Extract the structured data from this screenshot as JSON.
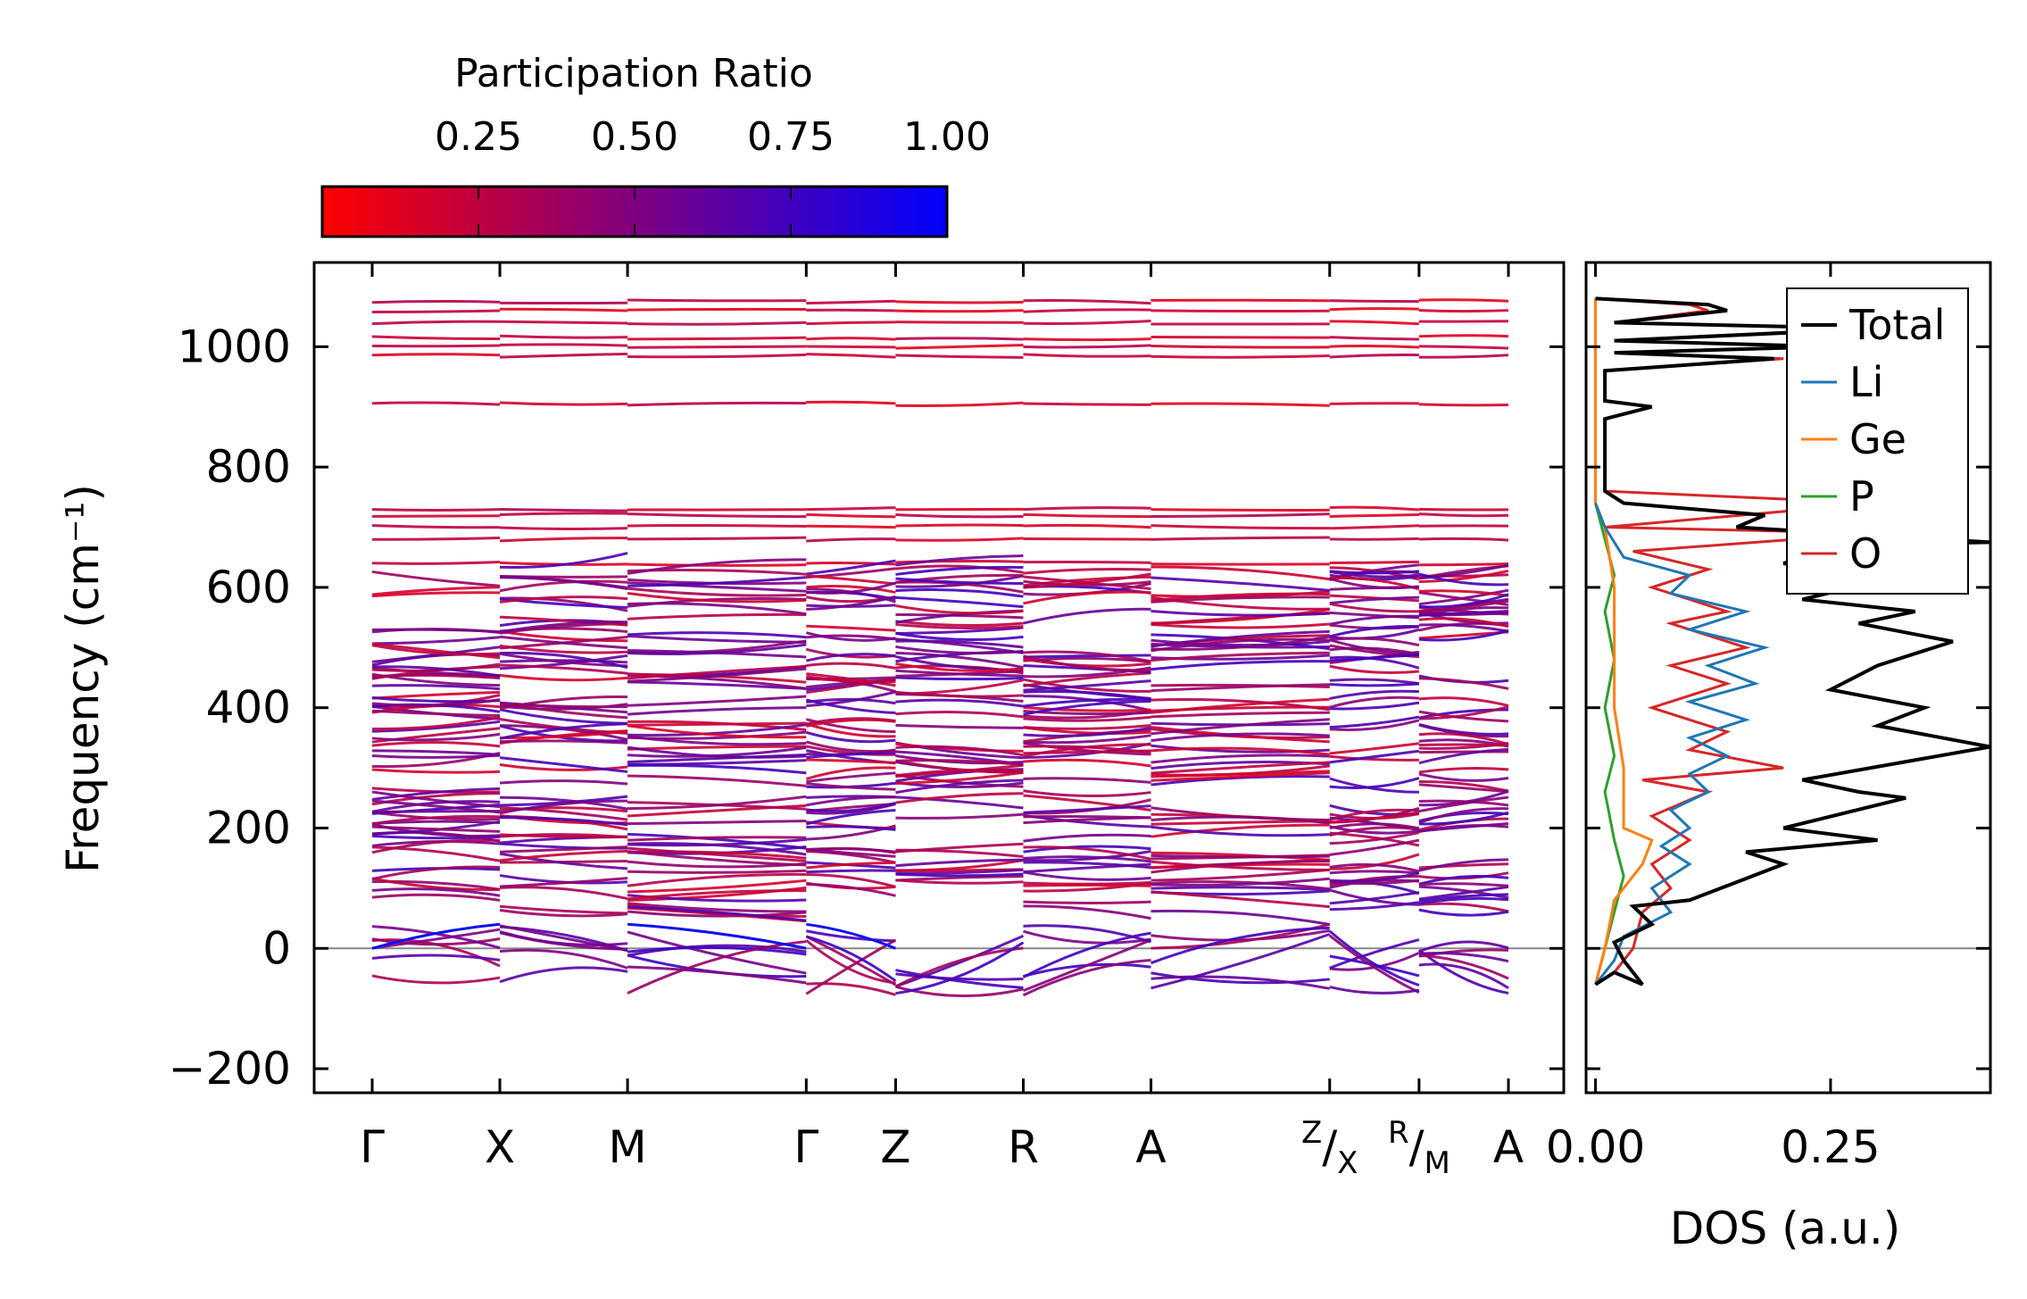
{
  "chart_data": [
    {
      "type": "line",
      "title": "",
      "xlabel": "",
      "ylabel": "Frequency (cm⁻¹)",
      "ylim": [
        -240,
        1140
      ],
      "yticks": [
        -200,
        0,
        200,
        400,
        600,
        800,
        1000
      ],
      "ytick_labels": [
        "−200",
        "0",
        "200",
        "400",
        "600",
        "800",
        "1000"
      ],
      "kpath": [
        {
          "label": "Γ",
          "pos": 0.0
        },
        {
          "label": "X",
          "pos": 1.0
        },
        {
          "label": "M",
          "pos": 2.0
        },
        {
          "label": "Γ",
          "pos": 3.4
        },
        {
          "label": "Z",
          "pos": 4.1
        },
        {
          "label": "R",
          "pos": 5.1
        },
        {
          "label": "A",
          "pos": 6.1
        },
        {
          "label": "Z/X",
          "pos": 7.5
        },
        {
          "label": "R/M",
          "pos": 8.2
        },
        {
          "label": "A",
          "pos": 8.9
        }
      ],
      "segment_breaks": [
        7.5,
        8.2
      ],
      "colorbar": {
        "label": "Participation Ratio",
        "range": [
          0.0,
          1.0
        ],
        "ticks": [
          0.25,
          0.5,
          0.75,
          1.0
        ],
        "tick_labels": [
          "0.25",
          "0.50",
          "0.75",
          "1.00"
        ],
        "color_low": "#ff0000",
        "color_high": "#0000ff"
      },
      "zero_line_color": "#888888",
      "flat_bands_cm1": [
        905,
        985,
        1000,
        1015,
        1040,
        1060,
        1075,
        730,
        720,
        700,
        680,
        640
      ],
      "dense_band_range_cm1": [
        60,
        640
      ],
      "negative_modes_min_cm1": -180
    },
    {
      "type": "line",
      "title": "",
      "xlabel": "DOS (a.u.)",
      "ylabel": "",
      "xlim": [
        -0.01,
        0.42
      ],
      "xticks": [
        0.0,
        0.25
      ],
      "xtick_labels": [
        "0.00",
        "0.25"
      ],
      "ylim": [
        -240,
        1140
      ],
      "legend_position": "top-right",
      "series": [
        {
          "name": "Total",
          "color": "#000000",
          "points": [
            [
              0.0,
              -60
            ],
            [
              0.02,
              -40
            ],
            [
              0.05,
              -60
            ],
            [
              0.03,
              -20
            ],
            [
              0.02,
              10
            ],
            [
              0.06,
              40
            ],
            [
              0.04,
              70
            ],
            [
              0.1,
              80
            ],
            [
              0.15,
              110
            ],
            [
              0.2,
              140
            ],
            [
              0.16,
              160
            ],
            [
              0.3,
              180
            ],
            [
              0.2,
              200
            ],
            [
              0.33,
              250
            ],
            [
              0.28,
              260
            ],
            [
              0.22,
              280
            ],
            [
              0.42,
              335
            ],
            [
              0.3,
              370
            ],
            [
              0.35,
              400
            ],
            [
              0.25,
              430
            ],
            [
              0.3,
              470
            ],
            [
              0.38,
              510
            ],
            [
              0.28,
              540
            ],
            [
              0.34,
              560
            ],
            [
              0.22,
              580
            ],
            [
              0.3,
              610
            ],
            [
              0.2,
              640
            ],
            [
              0.26,
              670
            ],
            [
              0.42,
              675
            ],
            [
              0.15,
              700
            ],
            [
              0.18,
              720
            ],
            [
              0.03,
              740
            ],
            [
              0.01,
              760
            ],
            [
              0.01,
              880
            ],
            [
              0.06,
              900
            ],
            [
              0.01,
              910
            ],
            [
              0.01,
              960
            ],
            [
              0.19,
              980
            ],
            [
              0.02,
              990
            ],
            [
              0.25,
              1000
            ],
            [
              0.02,
              1010
            ],
            [
              0.3,
              1030
            ],
            [
              0.02,
              1040
            ],
            [
              0.14,
              1060
            ],
            [
              0.12,
              1070
            ],
            [
              0.0,
              1080
            ]
          ]
        },
        {
          "name": "Li",
          "color": "#1f77b4",
          "points": [
            [
              0.0,
              -60
            ],
            [
              0.02,
              -20
            ],
            [
              0.03,
              20
            ],
            [
              0.08,
              60
            ],
            [
              0.06,
              100
            ],
            [
              0.1,
              140
            ],
            [
              0.07,
              170
            ],
            [
              0.1,
              200
            ],
            [
              0.08,
              230
            ],
            [
              0.12,
              260
            ],
            [
              0.1,
              290
            ],
            [
              0.14,
              320
            ],
            [
              0.1,
              350
            ],
            [
              0.16,
              380
            ],
            [
              0.1,
              410
            ],
            [
              0.17,
              440
            ],
            [
              0.12,
              470
            ],
            [
              0.18,
              500
            ],
            [
              0.1,
              530
            ],
            [
              0.16,
              560
            ],
            [
              0.08,
              590
            ],
            [
              0.1,
              620
            ],
            [
              0.03,
              650
            ],
            [
              0.01,
              700
            ],
            [
              0.0,
              740
            ]
          ]
        },
        {
          "name": "Ge",
          "color": "#ff7f0e",
          "points": [
            [
              0.0,
              -60
            ],
            [
              0.01,
              0
            ],
            [
              0.02,
              80
            ],
            [
              0.05,
              140
            ],
            [
              0.06,
              180
            ],
            [
              0.03,
              200
            ],
            [
              0.03,
              300
            ],
            [
              0.02,
              400
            ],
            [
              0.02,
              600
            ],
            [
              0.01,
              700
            ],
            [
              0.0,
              740
            ],
            [
              0.0,
              1080
            ]
          ]
        },
        {
          "name": "P",
          "color": "#2ca02c",
          "points": [
            [
              0.0,
              -60
            ],
            [
              0.01,
              0
            ],
            [
              0.02,
              60
            ],
            [
              0.03,
              120
            ],
            [
              0.02,
              180
            ],
            [
              0.01,
              260
            ],
            [
              0.02,
              320
            ],
            [
              0.01,
              400
            ],
            [
              0.02,
              480
            ],
            [
              0.01,
              560
            ],
            [
              0.02,
              620
            ],
            [
              0.01,
              680
            ],
            [
              0.0,
              740
            ],
            [
              0.0,
              1080
            ]
          ]
        },
        {
          "name": "O",
          "color": "#d62728",
          "points": [
            [
              0.0,
              -60
            ],
            [
              0.02,
              -40
            ],
            [
              0.04,
              0
            ],
            [
              0.05,
              60
            ],
            [
              0.08,
              100
            ],
            [
              0.06,
              140
            ],
            [
              0.1,
              180
            ],
            [
              0.06,
              220
            ],
            [
              0.12,
              260
            ],
            [
              0.05,
              280
            ],
            [
              0.2,
              300
            ],
            [
              0.1,
              330
            ],
            [
              0.14,
              360
            ],
            [
              0.06,
              400
            ],
            [
              0.14,
              440
            ],
            [
              0.08,
              470
            ],
            [
              0.16,
              500
            ],
            [
              0.08,
              540
            ],
            [
              0.14,
              560
            ],
            [
              0.06,
              600
            ],
            [
              0.12,
              630
            ],
            [
              0.04,
              660
            ],
            [
              0.3,
              690
            ],
            [
              0.01,
              700
            ],
            [
              0.3,
              740
            ],
            [
              0.01,
              760
            ],
            [
              0.01,
              880
            ],
            [
              0.06,
              900
            ],
            [
              0.01,
              910
            ],
            [
              0.01,
              960
            ],
            [
              0.2,
              980
            ],
            [
              0.02,
              990
            ],
            [
              0.24,
              1000
            ],
            [
              0.02,
              1010
            ],
            [
              0.28,
              1030
            ],
            [
              0.02,
              1040
            ],
            [
              0.12,
              1060
            ],
            [
              0.1,
              1070
            ],
            [
              0.0,
              1080
            ]
          ]
        }
      ]
    }
  ]
}
